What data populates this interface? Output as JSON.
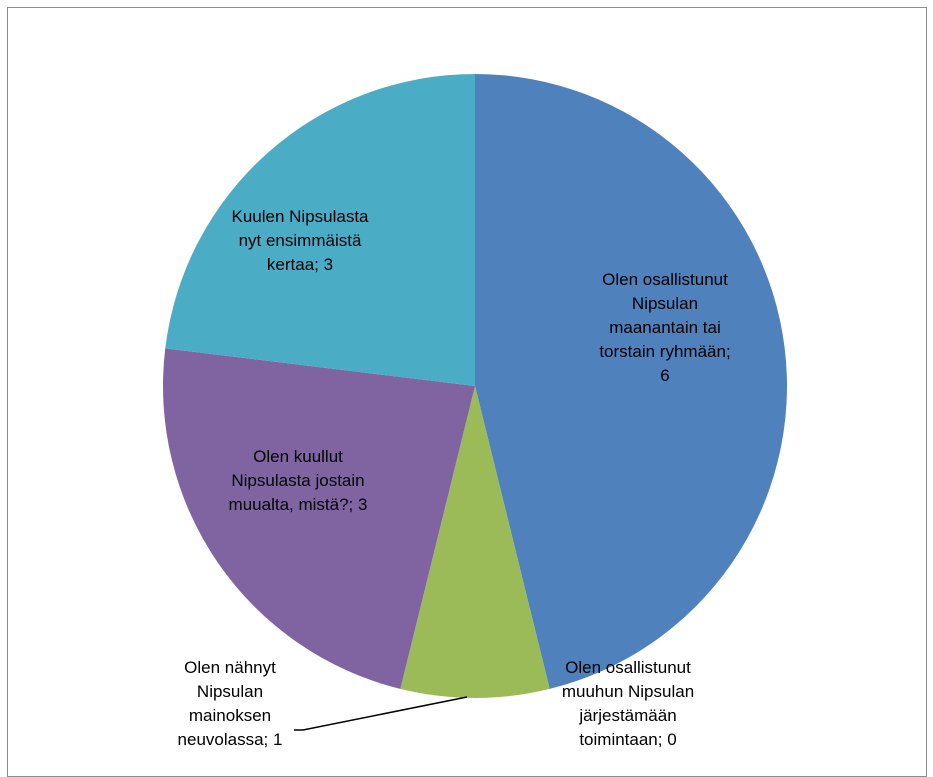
{
  "chart_data": {
    "type": "pie",
    "title": "",
    "slices": [
      {
        "label": "Olen osallistunut Nipsulan maanantain tai torstain ryhmään",
        "value": 6,
        "label_lines": [
          "Olen osallistunut",
          "Nipsulan",
          "maanantain tai",
          "torstain ryhmään;",
          "6"
        ],
        "color": "#4f81bd"
      },
      {
        "label": "Olen osallistunut muuhun Nipsulan järjestämään toimintaan",
        "value": 0,
        "label_lines": [
          "Olen osallistunut",
          "muuhun Nipsulan",
          "järjestämään",
          "toimintaan; 0"
        ],
        "color": "#c0504d"
      },
      {
        "label": "Olen nähnyt Nipsulan mainoksen neuvolassa",
        "value": 1,
        "label_lines": [
          "Olen nähnyt",
          "Nipsulan",
          "mainoksen",
          "neuvolassa; 1"
        ],
        "color": "#9bbb59"
      },
      {
        "label": "Olen kuullut Nipsulasta jostain muualta, mistä?",
        "value": 3,
        "label_lines": [
          "Olen kuullut",
          "Nipsulasta jostain",
          "muualta, mistä?; 3"
        ],
        "color": "#8064a2"
      },
      {
        "label": "Kuulen Nipsulasta nyt ensimmäistä kertaa",
        "value": 3,
        "label_lines": [
          "Kuulen Nipsulasta",
          "nyt ensimmäistä",
          "kertaa; 3"
        ],
        "color": "#4bacc6"
      }
    ],
    "start_angle": "12 o'clock",
    "direction": "clockwise",
    "legend": "none",
    "data_labels": "category; value"
  }
}
